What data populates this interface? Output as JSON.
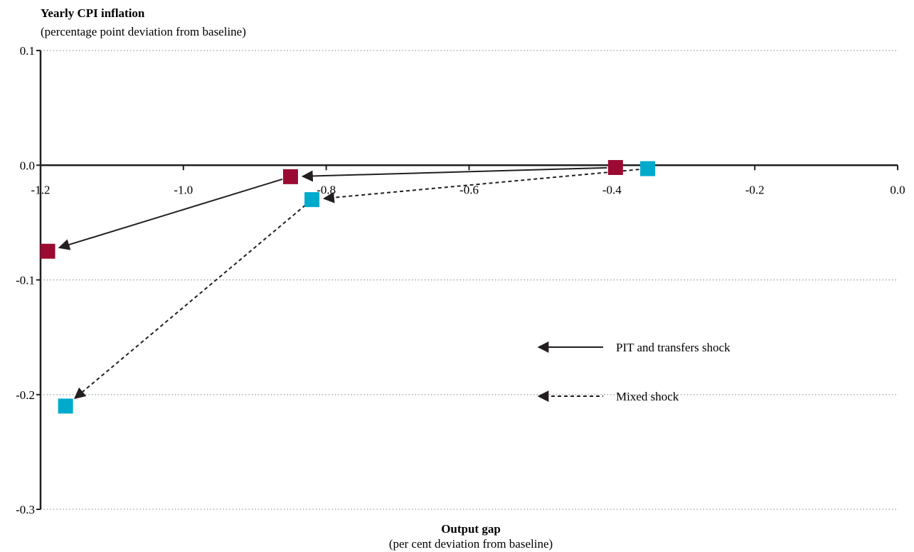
{
  "chart_data": {
    "type": "scatter",
    "title": "Yearly CPI inflation",
    "subtitle": "(percentage point deviation from baseline)",
    "xlabel": "Output gap",
    "xlabel_sub": "(per cent deviation from baseline)",
    "xlim": [
      -1.2,
      0.0
    ],
    "ylim": [
      -0.3,
      0.1
    ],
    "x_ticks": [
      -1.2,
      -1.0,
      -0.8,
      -0.6,
      -0.4,
      -0.2,
      0.0
    ],
    "x_tick_labels": [
      "-1.2",
      "-1.0",
      "-0.8",
      "-0.6",
      "-0.4",
      "-0.2",
      "0.0"
    ],
    "y_ticks": [
      0.1,
      0.0,
      -0.1,
      -0.2,
      -0.3
    ],
    "y_tick_labels": [
      "0.1",
      "0.0",
      "-0.1",
      "-0.2",
      "-0.3"
    ],
    "grid": true,
    "series": [
      {
        "name": "PIT and transfers shock",
        "color": "#9b0a32",
        "line_style": "solid",
        "points": [
          [
            -0.395,
            -0.002
          ],
          [
            -0.85,
            -0.01
          ],
          [
            -1.19,
            -0.075
          ]
        ]
      },
      {
        "name": "Mixed shock",
        "color": "#00aacc",
        "line_style": "dashed",
        "points": [
          [
            -0.35,
            -0.003
          ],
          [
            -0.82,
            -0.03
          ],
          [
            -1.165,
            -0.21
          ]
        ]
      }
    ],
    "legend": [
      {
        "label": "PIT and transfers shock",
        "style": "solid"
      },
      {
        "label": "Mixed shock",
        "style": "dashed"
      }
    ],
    "legend_position": "right-center"
  }
}
